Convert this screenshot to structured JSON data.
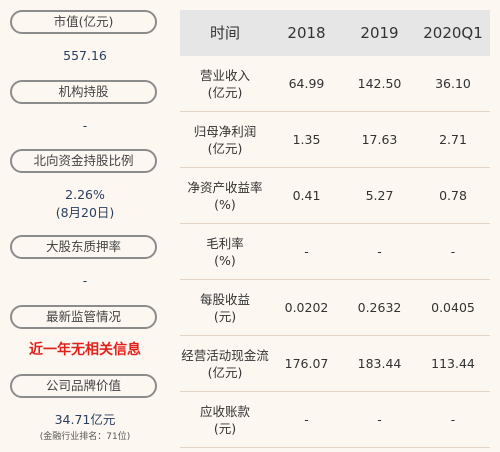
{
  "left": {
    "market_cap": {
      "label": "市值(亿元)",
      "value": "557.16"
    },
    "institution_holding": {
      "label": "机构持股",
      "value": "-"
    },
    "northbound": {
      "label": "北向资金持股比例",
      "value": "2.26%",
      "date": "(8月20日)"
    },
    "pledge": {
      "label": "大股东质押率",
      "value": "-"
    },
    "regulatory": {
      "label": "最新监管情况",
      "value": "近一年无相关信息"
    },
    "brand": {
      "label": "公司品牌价值",
      "value": "34.71亿元",
      "rank": "(金融行业排名：71位)"
    }
  },
  "table": {
    "headers": [
      "时间",
      "2018",
      "2019",
      "2020Q1"
    ],
    "rows": [
      {
        "label": [
          "营业收入",
          "(亿元)"
        ],
        "values": [
          "64.99",
          "142.50",
          "36.10"
        ]
      },
      {
        "label": [
          "归母净利润",
          "(亿元)"
        ],
        "values": [
          "1.35",
          "17.63",
          "2.71"
        ]
      },
      {
        "label": [
          "净资产收益率",
          "(%)"
        ],
        "values": [
          "0.41",
          "5.27",
          "0.78"
        ]
      },
      {
        "label": [
          "毛利率",
          "(%)"
        ],
        "values": [
          "-",
          "-",
          "-"
        ]
      },
      {
        "label": [
          "每股收益",
          "(元)"
        ],
        "values": [
          "0.0202",
          "0.2632",
          "0.0405"
        ]
      },
      {
        "label": [
          "经营活动现金流",
          "(亿元)"
        ],
        "values": [
          "176.07",
          "183.44",
          "113.44"
        ]
      },
      {
        "label": [
          "应收账款",
          "(元)"
        ],
        "values": [
          "-",
          "-",
          "-"
        ]
      }
    ]
  },
  "colors": {
    "accent_red": "#e3211c",
    "value_blue": "#2a3f5f",
    "header_bg": "#e6e6e6",
    "page_bg": "#fdf7f1"
  }
}
